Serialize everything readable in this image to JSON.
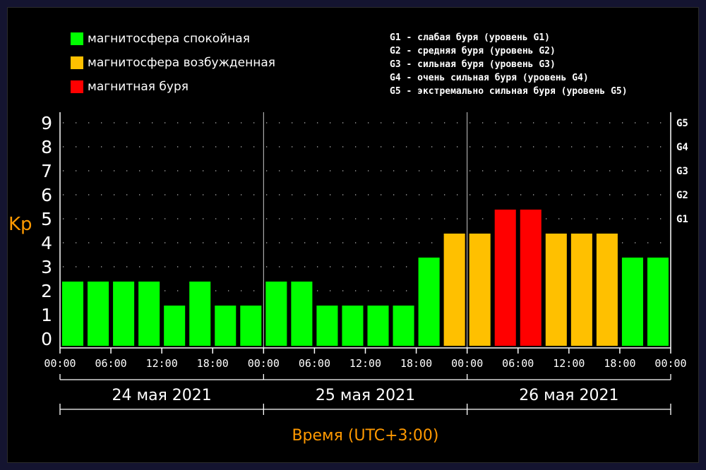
{
  "colors": {
    "calm": "#00ff00",
    "excited": "#ffc000",
    "storm": "#ff0000",
    "axis_title": "#ff9900",
    "background": "#000000"
  },
  "legend": [
    {
      "label": "магнитосфера спокойная",
      "color": "#00ff00"
    },
    {
      "label": "магнитосфера возбужденная",
      "color": "#ffc000"
    },
    {
      "label": "магнитная буря",
      "color": "#ff0000"
    }
  ],
  "storm_levels": [
    "G1 - слабая буря (уровень G1)",
    "G2 - средняя буря (уровень G2)",
    "G3 - сильная буря (уровень G3)",
    "G4 - очень сильная буря (уровень G4)",
    "G5 - экстремально сильная буря (уровень G5)"
  ],
  "chart_data": {
    "type": "bar",
    "ylabel": "Kp",
    "xlabel": "Время (UTC+3:00)",
    "ylim": [
      0,
      9
    ],
    "y_ticks": [
      "0",
      "1",
      "2",
      "3",
      "4",
      "5",
      "6",
      "7",
      "8",
      "9"
    ],
    "right_ticks": [
      {
        "label": "G1",
        "value": 5
      },
      {
        "label": "G2",
        "value": 6
      },
      {
        "label": "G3",
        "value": 7
      },
      {
        "label": "G4",
        "value": 8
      },
      {
        "label": "G5",
        "value": 9
      }
    ],
    "x_tick_labels": [
      "00:00",
      "06:00",
      "12:00",
      "18:00",
      "00:00",
      "06:00",
      "12:00",
      "18:00",
      "00:00",
      "06:00",
      "12:00",
      "18:00",
      "00:00"
    ],
    "days": [
      "24 мая 2021",
      "25 мая 2021",
      "26 мая 2021"
    ],
    "values": [
      2,
      2,
      2,
      2,
      1,
      2,
      1,
      1,
      2,
      2,
      1,
      1,
      1,
      1,
      3,
      4,
      4,
      5,
      5,
      4,
      4,
      4,
      3,
      3
    ],
    "categories": [
      "calm",
      "calm",
      "calm",
      "calm",
      "calm",
      "calm",
      "calm",
      "calm",
      "calm",
      "calm",
      "calm",
      "calm",
      "calm",
      "calm",
      "calm",
      "excited",
      "excited",
      "storm",
      "storm",
      "excited",
      "excited",
      "excited",
      "calm",
      "calm"
    ],
    "grid": true
  }
}
